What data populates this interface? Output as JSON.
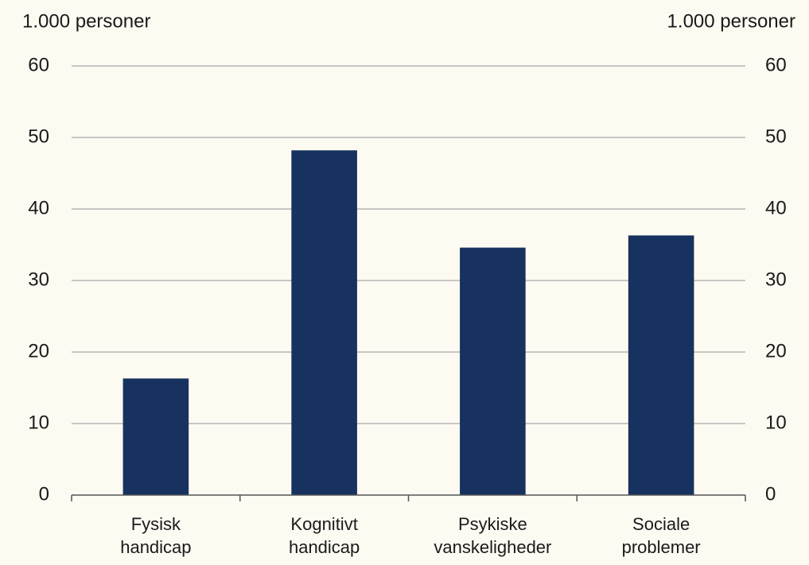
{
  "chart_data": {
    "type": "bar",
    "y_label": "1.000 personer",
    "y2_label": "1.000 personer",
    "categories": [
      "Fysisk\nhandicap",
      "Kognitivt\nhandicap",
      "Psykiske\nvanskeligheder",
      "Sociale\nproblemer"
    ],
    "values": [
      16.3,
      48.2,
      34.6,
      36.3
    ],
    "color": "#17325e",
    "ylim": [
      0,
      60
    ],
    "yticks": [
      0,
      10,
      20,
      30,
      40,
      50,
      60
    ],
    "y2lim": [
      0,
      60
    ],
    "y2ticks": [
      0,
      10,
      20,
      30,
      40,
      50,
      60
    ],
    "grid": true
  }
}
